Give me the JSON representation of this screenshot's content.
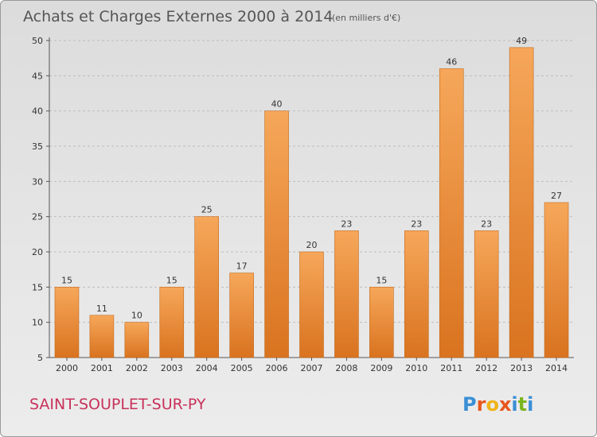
{
  "header": {
    "title": "Achats et Charges Externes 2000 à 2014",
    "unit": "(en milliers d'€)"
  },
  "footer": {
    "commune": "SAINT-SOUPLET-SUR-PY",
    "logo_letters": [
      "P",
      "r",
      "o",
      "x",
      "i",
      "t",
      "i"
    ],
    "logo_colors": [
      "#3a8fd6",
      "#e8571e",
      "#f0b419",
      "#e8571e",
      "#3a8fd6",
      "#7ab51d",
      "#3a8fd6"
    ]
  },
  "colors": {
    "bar_top": "#f6a75a",
    "bar_bottom": "#d9731f",
    "bar_edge": "#c46a1c"
  },
  "chart_data": {
    "type": "bar",
    "categories": [
      "2000",
      "2001",
      "2002",
      "2003",
      "2004",
      "2005",
      "2006",
      "2007",
      "2008",
      "2009",
      "2010",
      "2011",
      "2012",
      "2013",
      "2014"
    ],
    "values": [
      15,
      11,
      10,
      15,
      25,
      17,
      40,
      20,
      23,
      15,
      23,
      46,
      23,
      49,
      27
    ],
    "title": "Achats et Charges Externes 2000 à 2014",
    "ylim": [
      5,
      50
    ],
    "yticks": [
      5,
      10,
      15,
      20,
      25,
      30,
      35,
      40,
      45,
      50
    ],
    "grid": "horizontal dashed"
  }
}
